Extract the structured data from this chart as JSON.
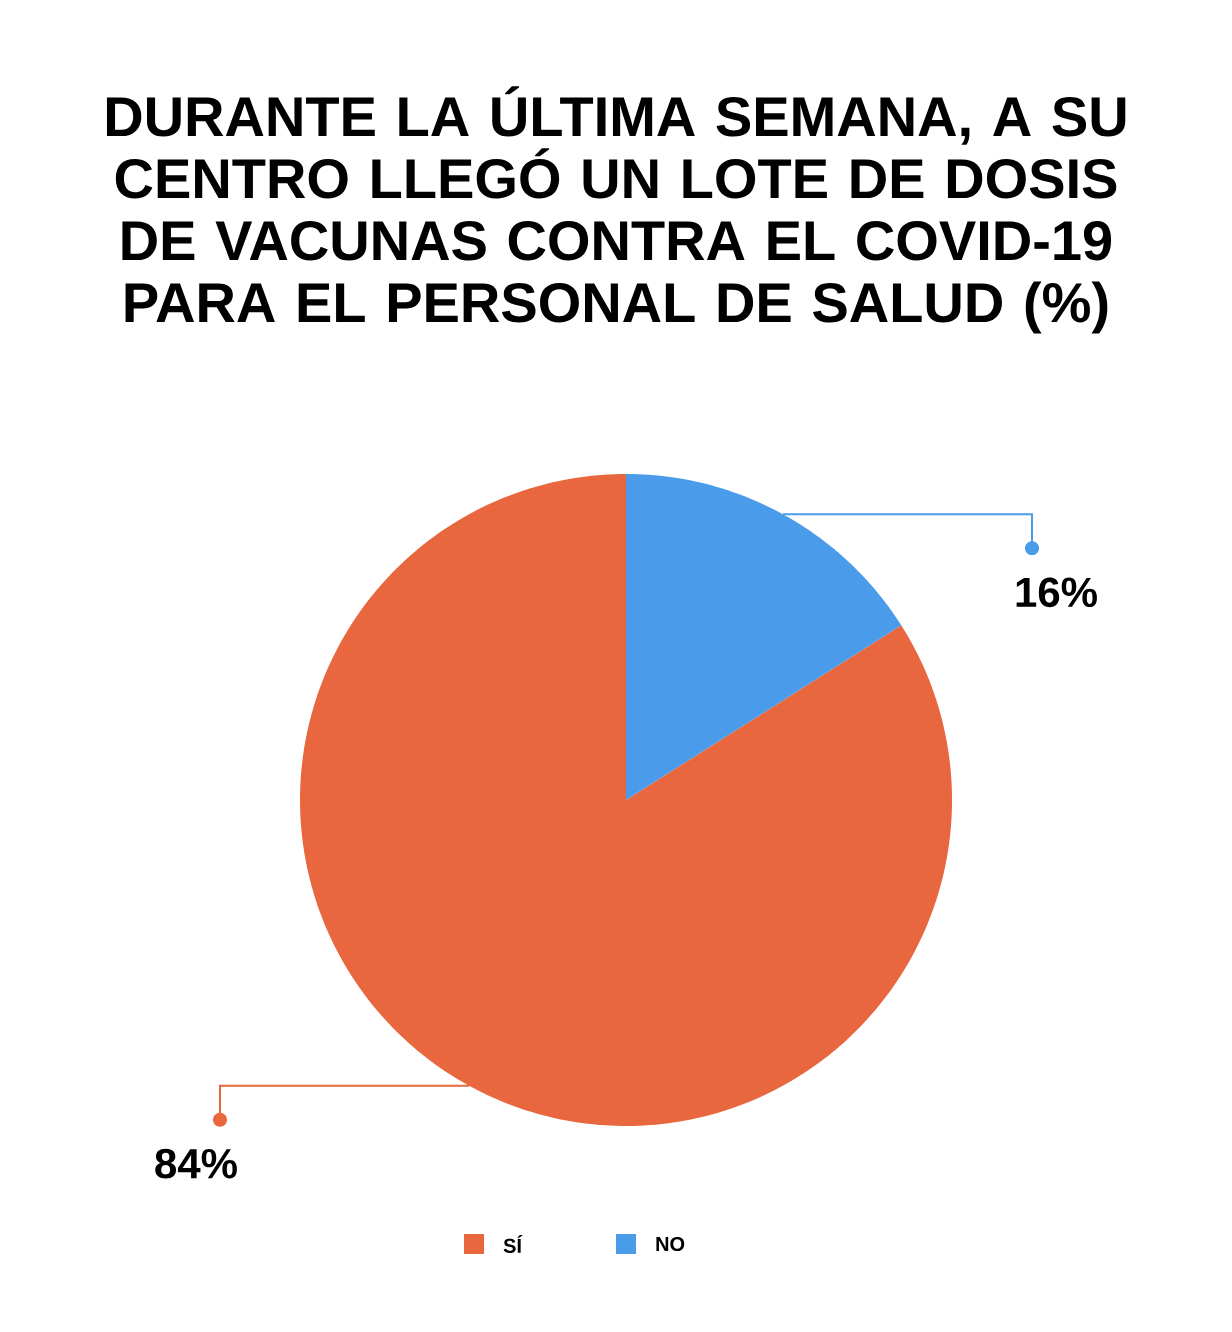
{
  "chart_data": {
    "type": "pie",
    "title": "DURANTE LA ÚLTIMA SEMANA, A SU CENTRO LLEGÓ UN LOTE DE DOSIS DE VACUNAS CONTRA EL COVID-19 PARA EL PERSONAL DE SALUD (%)",
    "categories": [
      "SÍ",
      "NO"
    ],
    "values": [
      84,
      16
    ],
    "colors": [
      "#e8673f",
      "#4a9bea"
    ],
    "value_labels": [
      "84%",
      "16%"
    ],
    "legend": "bottom"
  }
}
